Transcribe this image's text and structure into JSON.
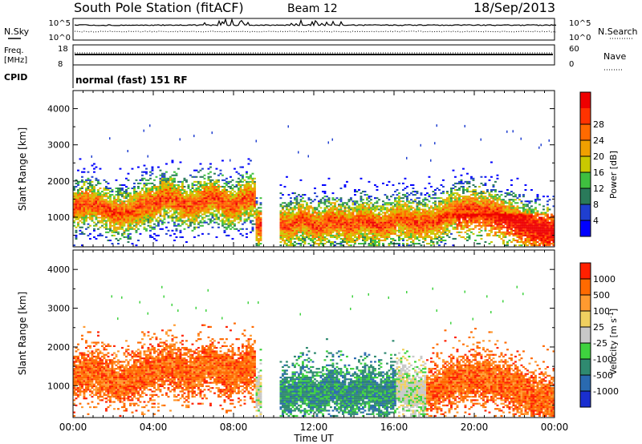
{
  "header": {
    "station": "South Pole Station (fitACF)",
    "beam": "Beam 12",
    "date": "18/Sep/2013"
  },
  "top_strip": {
    "nsky_label": "N.Sky",
    "nsearch_label": "N.Search",
    "nsky_ticks": [
      "10^5",
      "10^0"
    ],
    "nsearch_ticks": [
      "10^5",
      "10^0"
    ],
    "freq_label_line1": "Freq.",
    "freq_label_line2": "[MHz]",
    "freq_ticks": [
      "18",
      "8"
    ],
    "nave_label": "Nave",
    "nave_ticks": [
      "60",
      "0"
    ],
    "cpid_label": "CPID",
    "cpid_text": "normal (fast) 151 RF"
  },
  "chart_data": [
    {
      "type": "heatmap",
      "name": "power",
      "ylabel": "Slant Range [km]",
      "xlabel": "",
      "x_ticks": [
        "00:00",
        "04:00",
        "08:00",
        "12:00",
        "16:00",
        "20:00",
        "00:00"
      ],
      "x_range_hours": [
        0,
        24
      ],
      "ylim": [
        180,
        4500
      ],
      "y_ticks": [
        1000,
        2000,
        3000,
        4000
      ],
      "colorbar": {
        "label": "Power [dB]",
        "ticks": [
          "4",
          "8",
          "12",
          "16",
          "20",
          "24",
          "28"
        ],
        "colors": [
          "#0000ff",
          "#1f3fd0",
          "#2a7a5a",
          "#3fbf3f",
          "#c9c900",
          "#f0a000",
          "#ff6a00",
          "#ff3300",
          "#ee0000"
        ]
      }
    },
    {
      "type": "heatmap",
      "name": "velocity",
      "ylabel": "Slant Range [km]",
      "xlabel": "Time UT",
      "x_ticks": [
        "00:00",
        "04:00",
        "08:00",
        "12:00",
        "16:00",
        "20:00",
        "00:00"
      ],
      "x_range_hours": [
        0,
        24
      ],
      "ylim": [
        180,
        4500
      ],
      "y_ticks": [
        1000,
        2000,
        3000,
        4000
      ],
      "colorbar": {
        "label": "Velocity [m s",
        "label_sup": "-1",
        "ticks": [
          "1000",
          "500",
          "100",
          "25",
          "-25",
          "-100",
          "-500",
          "-1000"
        ],
        "colors": [
          "#1a2fd0",
          "#2a6ab0",
          "#2f8a70",
          "#3ed23e",
          "#c8c8c8",
          "#f0d060",
          "#ff9a30",
          "#ff6a00",
          "#ff2000"
        ]
      }
    }
  ]
}
